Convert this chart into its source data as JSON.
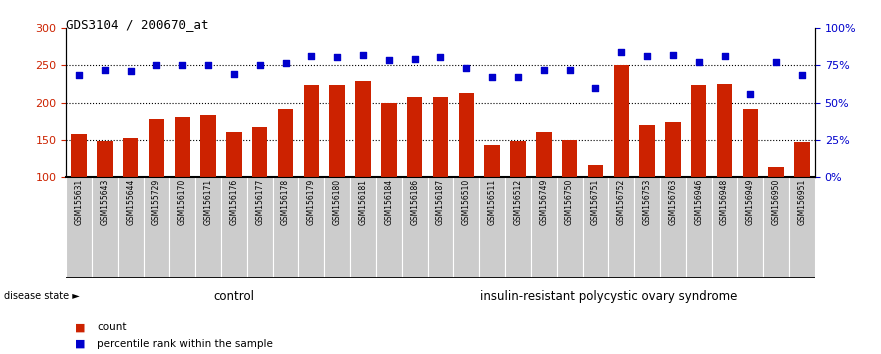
{
  "title": "GDS3104 / 200670_at",
  "samples": [
    "GSM155631",
    "GSM155643",
    "GSM155644",
    "GSM155729",
    "GSM156170",
    "GSM156171",
    "GSM156176",
    "GSM156177",
    "GSM156178",
    "GSM156179",
    "GSM156180",
    "GSM156181",
    "GSM156184",
    "GSM156186",
    "GSM156187",
    "GSM156510",
    "GSM156511",
    "GSM156512",
    "GSM156749",
    "GSM156750",
    "GSM156751",
    "GSM156752",
    "GSM156753",
    "GSM156763",
    "GSM156946",
    "GSM156948",
    "GSM156949",
    "GSM156950",
    "GSM156951"
  ],
  "counts": [
    158,
    148,
    153,
    178,
    181,
    184,
    160,
    167,
    191,
    224,
    224,
    229,
    199,
    207,
    207,
    213,
    143,
    149,
    160,
    150,
    116,
    251,
    170,
    174,
    224,
    225,
    191,
    113,
    147
  ],
  "percentiles": [
    237,
    244,
    243,
    250,
    251,
    250,
    238,
    250,
    253,
    263,
    262,
    264,
    258,
    259,
    261,
    247,
    235,
    235,
    244,
    244,
    220,
    268,
    263,
    264,
    255,
    263,
    212,
    255,
    237
  ],
  "n_control": 13,
  "control_label": "control",
  "disease_label": "insulin-resistant polycystic ovary syndrome",
  "ylim_left": [
    100,
    300
  ],
  "ylim_right": [
    0,
    100
  ],
  "yticks_left": [
    100,
    150,
    200,
    250,
    300
  ],
  "yticks_right": [
    0,
    25,
    50,
    75,
    100
  ],
  "bar_color": "#cc2200",
  "dot_color": "#0000cc",
  "control_bg": "#ccffcc",
  "disease_bg": "#44cc44",
  "tick_area_bg": "#cccccc",
  "legend_bar_label": "count",
  "legend_dot_label": "percentile rank within the sample",
  "background_color": "#ffffff",
  "dotted_line_color": "#000000",
  "yleft_label_color": "#cc2200",
  "yright_label_color": "#0000cc"
}
